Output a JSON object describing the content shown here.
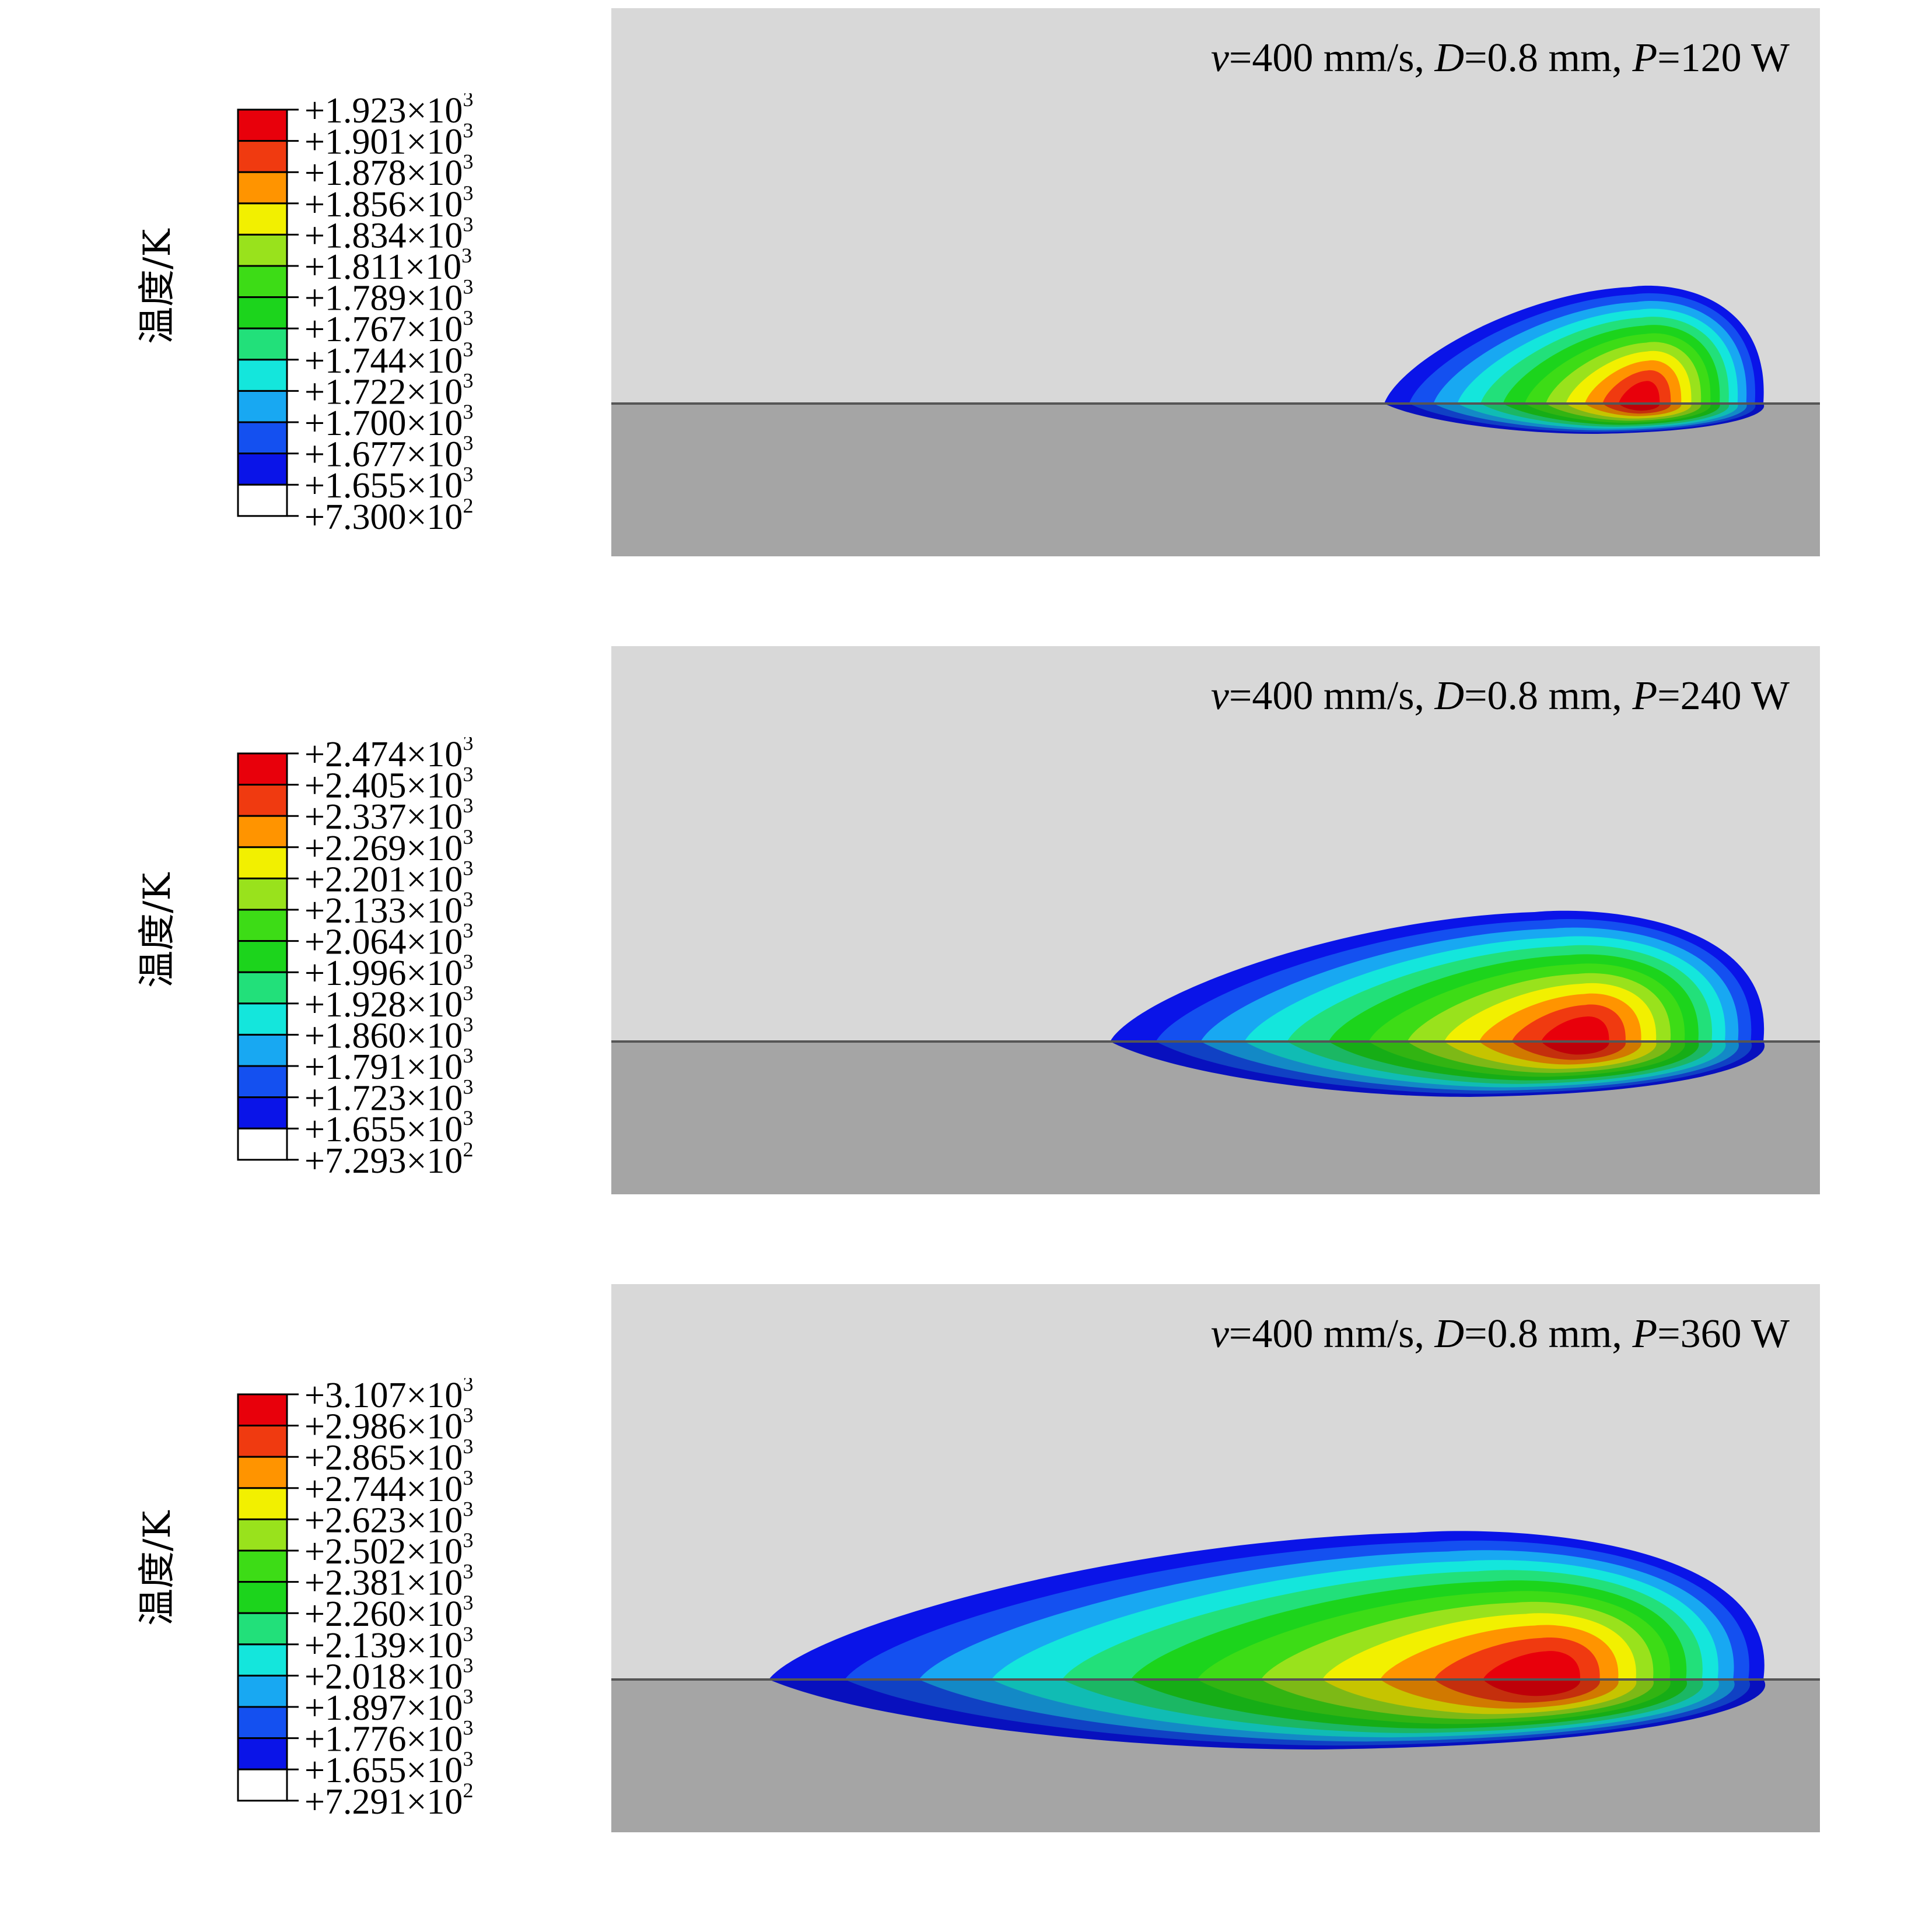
{
  "colors": [
    "#e8000b",
    "#f03a10",
    "#ff9400",
    "#f2f000",
    "#99e21c",
    "#3ddc16",
    "#1cd41c",
    "#22e07a",
    "#14e6dc",
    "#18a8f2",
    "#1450f0",
    "#0a14e8",
    "#ffffff"
  ],
  "panels": [
    {
      "legend_title": "温度/K",
      "legend_values": [
        {
          "mantissa": "+1.923",
          "exponent": "3"
        },
        {
          "mantissa": "+1.901",
          "exponent": "3"
        },
        {
          "mantissa": "+1.878",
          "exponent": "3"
        },
        {
          "mantissa": "+1.856",
          "exponent": "3"
        },
        {
          "mantissa": "+1.834",
          "exponent": "3"
        },
        {
          "mantissa": "+1.811",
          "exponent": "3"
        },
        {
          "mantissa": "+1.789",
          "exponent": "3"
        },
        {
          "mantissa": "+1.767",
          "exponent": "3"
        },
        {
          "mantissa": "+1.744",
          "exponent": "3"
        },
        {
          "mantissa": "+1.722",
          "exponent": "3"
        },
        {
          "mantissa": "+1.700",
          "exponent": "3"
        },
        {
          "mantissa": "+1.677",
          "exponent": "3"
        },
        {
          "mantissa": "+1.655",
          "exponent": "3"
        },
        {
          "mantissa": "+7.300",
          "exponent": "2"
        }
      ],
      "caption": {
        "v": "v",
        "v_val": "=400 mm/s, ",
        "D": "D",
        "D_val": "=0.8 mm, ",
        "P": "P",
        "P_val": "=120 W"
      }
    },
    {
      "legend_title": "温度/K",
      "legend_values": [
        {
          "mantissa": "+2.474",
          "exponent": "3"
        },
        {
          "mantissa": "+2.405",
          "exponent": "3"
        },
        {
          "mantissa": "+2.337",
          "exponent": "3"
        },
        {
          "mantissa": "+2.269",
          "exponent": "3"
        },
        {
          "mantissa": "+2.201",
          "exponent": "3"
        },
        {
          "mantissa": "+2.133",
          "exponent": "3"
        },
        {
          "mantissa": "+2.064",
          "exponent": "3"
        },
        {
          "mantissa": "+1.996",
          "exponent": "3"
        },
        {
          "mantissa": "+1.928",
          "exponent": "3"
        },
        {
          "mantissa": "+1.860",
          "exponent": "3"
        },
        {
          "mantissa": "+1.791",
          "exponent": "3"
        },
        {
          "mantissa": "+1.723",
          "exponent": "3"
        },
        {
          "mantissa": "+1.655",
          "exponent": "3"
        },
        {
          "mantissa": "+7.293",
          "exponent": "2"
        }
      ],
      "caption": {
        "v": "v",
        "v_val": "=400 mm/s, ",
        "D": "D",
        "D_val": "=0.8 mm, ",
        "P": "P",
        "P_val": "=240 W"
      }
    },
    {
      "legend_title": "温度/K",
      "legend_values": [
        {
          "mantissa": "+3.107",
          "exponent": "3"
        },
        {
          "mantissa": "+2.986",
          "exponent": "3"
        },
        {
          "mantissa": "+2.865",
          "exponent": "3"
        },
        {
          "mantissa": "+2.744",
          "exponent": "3"
        },
        {
          "mantissa": "+2.623",
          "exponent": "3"
        },
        {
          "mantissa": "+2.502",
          "exponent": "3"
        },
        {
          "mantissa": "+2.381",
          "exponent": "3"
        },
        {
          "mantissa": "+2.260",
          "exponent": "3"
        },
        {
          "mantissa": "+2.139",
          "exponent": "3"
        },
        {
          "mantissa": "+2.018",
          "exponent": "3"
        },
        {
          "mantissa": "+1.897",
          "exponent": "3"
        },
        {
          "mantissa": "+1.776",
          "exponent": "3"
        },
        {
          "mantissa": "+1.655",
          "exponent": "3"
        },
        {
          "mantissa": "+7.291",
          "exponent": "2"
        }
      ],
      "caption": {
        "v": "v",
        "v_val": "=400 mm/s, ",
        "D": "D",
        "D_val": "=0.8 mm, ",
        "P": "P",
        "P_val": "=360 W"
      }
    }
  ]
}
